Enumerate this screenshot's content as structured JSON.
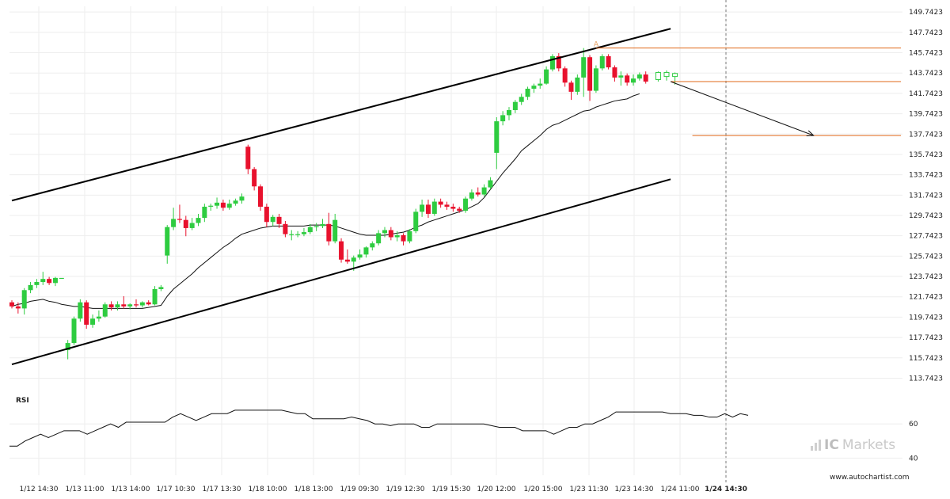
{
  "chart_data": {
    "type": "candlestick",
    "price_axis": {
      "ticks": [
        149.7423,
        147.7423,
        145.7423,
        143.7423,
        141.7423,
        139.7423,
        137.7423,
        135.7423,
        133.7423,
        131.7423,
        129.7423,
        127.7423,
        125.7423,
        123.7423,
        121.7423,
        119.7423,
        117.7423,
        115.7423,
        113.7423
      ],
      "ylim": [
        113.0,
        150.3
      ]
    },
    "x_ticks": [
      "1/12 14:30",
      "1/13 11:00",
      "1/13 14:00",
      "1/17 10:30",
      "1/17 13:30",
      "1/18 10:00",
      "1/18 13:00",
      "1/19 09:30",
      "1/19 12:30",
      "1/19 15:30",
      "1/20 12:00",
      "1/20 15:00",
      "1/23 11:30",
      "1/23 14:30",
      "1/24 11:00",
      "1/24 14:30"
    ],
    "x_ticks_bold_index": 15,
    "candles": [
      {
        "o": 121.2,
        "h": 121.4,
        "l": 120.6,
        "c": 120.8
      },
      {
        "o": 120.8,
        "h": 121.2,
        "l": 120.1,
        "c": 120.6
      },
      {
        "o": 120.6,
        "h": 122.6,
        "l": 120.0,
        "c": 122.4
      },
      {
        "o": 122.4,
        "h": 123.2,
        "l": 122.1,
        "c": 122.9
      },
      {
        "o": 122.9,
        "h": 123.5,
        "l": 122.6,
        "c": 123.2
      },
      {
        "o": 123.2,
        "h": 124.2,
        "l": 122.9,
        "c": 123.5
      },
      {
        "o": 123.5,
        "h": 123.7,
        "l": 122.9,
        "c": 123.1
      },
      {
        "o": 123.1,
        "h": 123.7,
        "l": 122.8,
        "c": 123.6
      },
      {
        "o": 123.6,
        "h": 123.6,
        "l": 123.6,
        "c": 123.6
      },
      {
        "o": 116.5,
        "h": 117.5,
        "l": 115.6,
        "c": 117.2
      },
      {
        "o": 117.2,
        "h": 119.8,
        "l": 117.0,
        "c": 119.6
      },
      {
        "o": 119.6,
        "h": 121.5,
        "l": 119.3,
        "c": 121.2
      },
      {
        "o": 121.2,
        "h": 121.4,
        "l": 118.6,
        "c": 119.0
      },
      {
        "o": 119.0,
        "h": 120.0,
        "l": 118.7,
        "c": 119.6
      },
      {
        "o": 119.6,
        "h": 120.4,
        "l": 119.3,
        "c": 119.8
      },
      {
        "o": 119.8,
        "h": 121.2,
        "l": 119.7,
        "c": 121.0
      },
      {
        "o": 121.0,
        "h": 121.3,
        "l": 120.4,
        "c": 120.7
      },
      {
        "o": 120.7,
        "h": 121.3,
        "l": 120.4,
        "c": 121.0
      },
      {
        "o": 121.0,
        "h": 121.8,
        "l": 120.6,
        "c": 120.8
      },
      {
        "o": 120.8,
        "h": 121.1,
        "l": 120.5,
        "c": 121.0
      },
      {
        "o": 121.0,
        "h": 121.5,
        "l": 120.7,
        "c": 120.9
      },
      {
        "o": 120.9,
        "h": 121.3,
        "l": 120.7,
        "c": 121.2
      },
      {
        "o": 121.2,
        "h": 121.4,
        "l": 120.9,
        "c": 121.0
      },
      {
        "o": 121.0,
        "h": 122.8,
        "l": 120.9,
        "c": 122.5
      },
      {
        "o": 122.5,
        "h": 122.9,
        "l": 122.3,
        "c": 122.7
      },
      {
        "o": 125.8,
        "h": 128.8,
        "l": 125.0,
        "c": 128.6
      },
      {
        "o": 128.6,
        "h": 130.5,
        "l": 128.3,
        "c": 129.4
      },
      {
        "o": 129.4,
        "h": 130.8,
        "l": 129.0,
        "c": 129.3
      },
      {
        "o": 129.3,
        "h": 129.7,
        "l": 127.7,
        "c": 128.5
      },
      {
        "o": 128.5,
        "h": 129.5,
        "l": 128.3,
        "c": 129.0
      },
      {
        "o": 129.0,
        "h": 129.9,
        "l": 128.7,
        "c": 129.5
      },
      {
        "o": 129.5,
        "h": 130.9,
        "l": 129.1,
        "c": 130.6
      },
      {
        "o": 130.6,
        "h": 130.9,
        "l": 130.2,
        "c": 130.7
      },
      {
        "o": 130.7,
        "h": 131.5,
        "l": 130.4,
        "c": 131.0
      },
      {
        "o": 131.0,
        "h": 131.3,
        "l": 130.2,
        "c": 130.5
      },
      {
        "o": 130.5,
        "h": 131.3,
        "l": 130.3,
        "c": 130.9
      },
      {
        "o": 130.9,
        "h": 131.4,
        "l": 130.7,
        "c": 131.2
      },
      {
        "o": 131.2,
        "h": 131.9,
        "l": 130.9,
        "c": 131.6
      },
      {
        "o": 136.5,
        "h": 136.7,
        "l": 133.8,
        "c": 134.3
      },
      {
        "o": 134.3,
        "h": 134.5,
        "l": 132.2,
        "c": 132.6
      },
      {
        "o": 132.6,
        "h": 132.8,
        "l": 130.2,
        "c": 130.6
      },
      {
        "o": 130.6,
        "h": 130.9,
        "l": 128.6,
        "c": 129.1
      },
      {
        "o": 129.1,
        "h": 129.8,
        "l": 128.7,
        "c": 129.6
      },
      {
        "o": 129.6,
        "h": 129.9,
        "l": 128.5,
        "c": 128.9
      },
      {
        "o": 128.9,
        "h": 129.2,
        "l": 127.6,
        "c": 127.9
      },
      {
        "o": 127.9,
        "h": 128.3,
        "l": 127.3,
        "c": 127.9
      },
      {
        "o": 127.9,
        "h": 128.2,
        "l": 127.6,
        "c": 127.9
      },
      {
        "o": 127.9,
        "h": 128.5,
        "l": 127.7,
        "c": 128.1
      },
      {
        "o": 128.1,
        "h": 128.9,
        "l": 127.9,
        "c": 128.6
      },
      {
        "o": 128.6,
        "h": 129.0,
        "l": 128.2,
        "c": 128.7
      },
      {
        "o": 128.7,
        "h": 129.4,
        "l": 128.5,
        "c": 128.9
      },
      {
        "o": 128.9,
        "h": 130.0,
        "l": 126.8,
        "c": 127.2
      },
      {
        "o": 127.2,
        "h": 129.9,
        "l": 127.0,
        "c": 129.3
      },
      {
        "o": 127.2,
        "h": 127.5,
        "l": 125.1,
        "c": 125.4
      },
      {
        "o": 125.4,
        "h": 126.4,
        "l": 125.0,
        "c": 125.2
      },
      {
        "o": 125.2,
        "h": 125.8,
        "l": 124.3,
        "c": 125.6
      },
      {
        "o": 125.6,
        "h": 126.4,
        "l": 125.4,
        "c": 125.9
      },
      {
        "o": 125.9,
        "h": 126.7,
        "l": 125.6,
        "c": 126.6
      },
      {
        "o": 126.6,
        "h": 127.2,
        "l": 126.3,
        "c": 127.0
      },
      {
        "o": 127.0,
        "h": 128.3,
        "l": 126.8,
        "c": 128.0
      },
      {
        "o": 128.0,
        "h": 128.6,
        "l": 127.6,
        "c": 128.3
      },
      {
        "o": 128.3,
        "h": 128.6,
        "l": 127.3,
        "c": 127.6
      },
      {
        "o": 127.6,
        "h": 128.2,
        "l": 127.2,
        "c": 127.8
      },
      {
        "o": 127.8,
        "h": 128.0,
        "l": 126.8,
        "c": 127.2
      },
      {
        "o": 127.2,
        "h": 128.4,
        "l": 127.0,
        "c": 128.2
      },
      {
        "o": 128.2,
        "h": 130.4,
        "l": 128.0,
        "c": 130.1
      },
      {
        "o": 130.1,
        "h": 131.3,
        "l": 129.6,
        "c": 130.8
      },
      {
        "o": 130.8,
        "h": 131.3,
        "l": 129.5,
        "c": 129.9
      },
      {
        "o": 129.9,
        "h": 131.4,
        "l": 129.7,
        "c": 131.1
      },
      {
        "o": 131.1,
        "h": 131.4,
        "l": 130.5,
        "c": 130.8
      },
      {
        "o": 130.8,
        "h": 131.1,
        "l": 130.3,
        "c": 130.6
      },
      {
        "o": 130.6,
        "h": 130.9,
        "l": 130.1,
        "c": 130.4
      },
      {
        "o": 130.4,
        "h": 130.6,
        "l": 130.0,
        "c": 130.2
      },
      {
        "o": 130.2,
        "h": 131.6,
        "l": 130.0,
        "c": 131.4
      },
      {
        "o": 131.4,
        "h": 132.3,
        "l": 131.2,
        "c": 132.0
      },
      {
        "o": 132.0,
        "h": 132.5,
        "l": 131.6,
        "c": 131.8
      },
      {
        "o": 131.8,
        "h": 132.8,
        "l": 131.6,
        "c": 132.5
      },
      {
        "o": 132.5,
        "h": 133.5,
        "l": 132.3,
        "c": 133.2
      },
      {
        "o": 135.9,
        "h": 139.4,
        "l": 134.3,
        "c": 139.0
      },
      {
        "o": 139.0,
        "h": 140.0,
        "l": 138.6,
        "c": 139.6
      },
      {
        "o": 139.6,
        "h": 140.4,
        "l": 139.1,
        "c": 140.1
      },
      {
        "o": 140.1,
        "h": 141.1,
        "l": 139.8,
        "c": 140.9
      },
      {
        "o": 140.9,
        "h": 141.7,
        "l": 140.6,
        "c": 141.4
      },
      {
        "o": 141.4,
        "h": 142.4,
        "l": 141.1,
        "c": 142.2
      },
      {
        "o": 142.2,
        "h": 142.7,
        "l": 141.8,
        "c": 142.5
      },
      {
        "o": 142.5,
        "h": 143.2,
        "l": 142.2,
        "c": 142.7
      },
      {
        "o": 142.7,
        "h": 144.4,
        "l": 142.6,
        "c": 144.1
      },
      {
        "o": 144.1,
        "h": 145.6,
        "l": 143.9,
        "c": 145.4
      },
      {
        "o": 145.4,
        "h": 145.7,
        "l": 143.9,
        "c": 144.2
      },
      {
        "o": 144.2,
        "h": 144.4,
        "l": 142.4,
        "c": 142.8
      },
      {
        "o": 142.8,
        "h": 143.0,
        "l": 141.1,
        "c": 141.9
      },
      {
        "o": 141.9,
        "h": 143.6,
        "l": 141.6,
        "c": 143.3
      },
      {
        "o": 143.3,
        "h": 146.2,
        "l": 141.4,
        "c": 145.3
      },
      {
        "o": 145.3,
        "h": 145.5,
        "l": 141.0,
        "c": 142.0
      },
      {
        "o": 142.0,
        "h": 144.5,
        "l": 141.8,
        "c": 144.2
      },
      {
        "o": 144.2,
        "h": 145.6,
        "l": 144.0,
        "c": 145.4
      },
      {
        "o": 145.4,
        "h": 145.6,
        "l": 144.1,
        "c": 144.3
      },
      {
        "o": 144.3,
        "h": 144.5,
        "l": 142.9,
        "c": 143.3
      },
      {
        "o": 143.3,
        "h": 143.9,
        "l": 142.5,
        "c": 143.5
      },
      {
        "o": 143.5,
        "h": 143.7,
        "l": 142.5,
        "c": 142.8
      },
      {
        "o": 142.8,
        "h": 143.6,
        "l": 142.5,
        "c": 143.2
      },
      {
        "o": 143.2,
        "h": 143.8,
        "l": 143.0,
        "c": 143.6
      },
      {
        "o": 143.6,
        "h": 143.9,
        "l": 142.7,
        "c": 142.9
      }
    ],
    "projection_candles": [
      {
        "o": 143.1,
        "h": 143.9,
        "l": 142.9,
        "c": 143.8
      },
      {
        "o": 143.8,
        "h": 144.0,
        "l": 143.0,
        "c": 143.4
      },
      {
        "o": 143.4,
        "h": 143.8,
        "l": 142.6,
        "c": 143.7
      }
    ],
    "moving_average": [
      120.8,
      121.0,
      121.1,
      121.3,
      121.4,
      121.5,
      121.3,
      121.2,
      121.0,
      120.9,
      120.8,
      120.8,
      120.7,
      120.6,
      120.6,
      120.6,
      120.6,
      120.6,
      120.6,
      120.6,
      120.6,
      120.6,
      120.7,
      120.8,
      120.9,
      121.8,
      122.5,
      123.0,
      123.5,
      124.0,
      124.6,
      125.1,
      125.6,
      126.1,
      126.6,
      127.0,
      127.5,
      127.9,
      128.1,
      128.3,
      128.5,
      128.6,
      128.7,
      128.7,
      128.7,
      128.7,
      128.7,
      128.7,
      128.8,
      128.8,
      128.8,
      128.8,
      128.7,
      128.5,
      128.3,
      128.1,
      127.9,
      127.8,
      127.8,
      127.8,
      127.8,
      127.9,
      128.0,
      128.1,
      128.3,
      128.6,
      128.8,
      129.1,
      129.3,
      129.5,
      129.7,
      129.9,
      130.1,
      130.3,
      130.6,
      130.9,
      131.5,
      132.3,
      133.1,
      133.9,
      134.6,
      135.3,
      136.1,
      136.6,
      137.1,
      137.6,
      138.2,
      138.6,
      138.8,
      139.1,
      139.4,
      139.7,
      140.0,
      140.1,
      140.4,
      140.6,
      140.8,
      141.0,
      141.1,
      141.2,
      141.5,
      141.7
    ],
    "channel_upper": {
      "from": [
        0,
        131.2
      ],
      "to": [
        106,
        148.1
      ]
    },
    "channel_lower": {
      "from": [
        0,
        115.1
      ],
      "to": [
        106,
        133.3
      ]
    },
    "horizontal_levels": [
      {
        "value": 146.2,
        "start": 94
      },
      {
        "value": 142.9,
        "start": 106
      },
      {
        "value": 137.6,
        "start": 109.5
      }
    ],
    "forecast_arrow": {
      "from": [
        106,
        142.9
      ],
      "to": [
        129,
        137.6
      ]
    },
    "marker": {
      "index": 94,
      "value": 146.2,
      "label": "A"
    },
    "rsi": {
      "label": "RSI",
      "ticks": [
        60,
        40
      ],
      "ylim": [
        30,
        80
      ],
      "values": [
        47,
        47,
        50,
        52,
        54,
        52,
        54,
        56,
        56,
        56,
        54,
        56,
        58,
        60,
        58,
        61,
        61,
        61,
        61,
        61,
        61,
        64,
        66,
        64,
        62,
        64,
        66,
        66,
        66,
        68,
        68,
        68,
        68,
        68,
        68,
        68,
        67,
        66,
        66,
        63,
        63,
        63,
        63,
        63,
        64,
        63,
        62,
        60,
        60,
        59,
        60,
        60,
        60,
        58,
        58,
        60,
        60,
        60,
        60,
        60,
        60,
        60,
        59,
        58,
        58,
        58,
        56,
        56,
        56,
        56,
        54,
        56,
        58,
        58,
        60,
        60,
        62,
        64,
        67,
        67,
        67,
        67,
        67,
        67,
        67,
        66,
        66,
        66,
        65,
        65,
        64,
        64,
        66,
        64,
        66,
        65
      ]
    }
  },
  "brand": {
    "name": "Markets",
    "prefix": "IC"
  },
  "footer": {
    "url": "www.autochartist.com"
  }
}
